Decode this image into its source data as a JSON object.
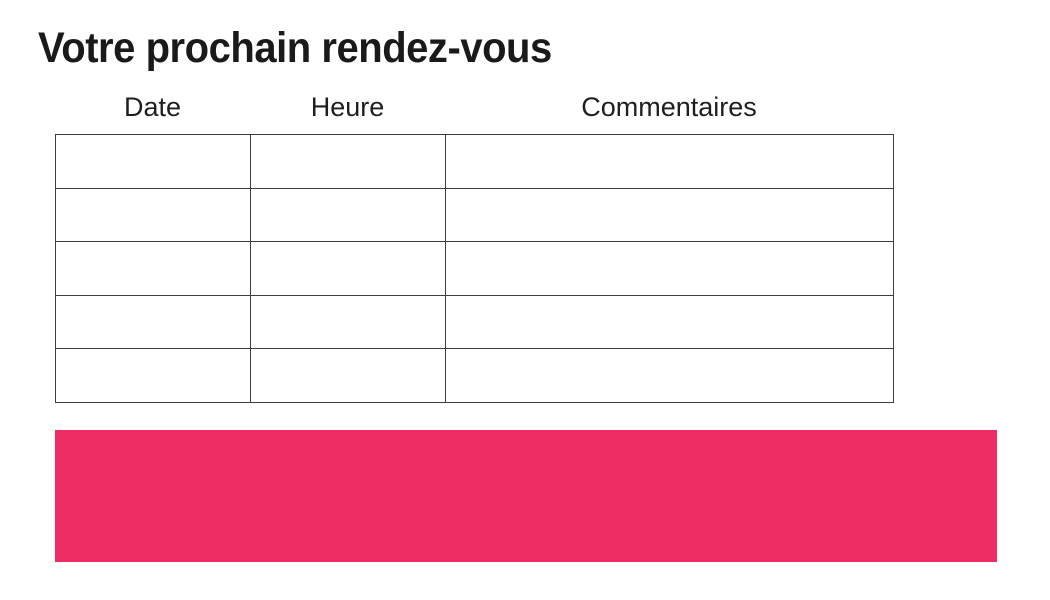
{
  "page": {
    "title": "Votre prochain rendez-vous"
  },
  "table": {
    "columns": [
      "Date",
      "Heure",
      "Commentaires"
    ],
    "rows": [
      [
        "",
        "",
        ""
      ],
      [
        "",
        "",
        ""
      ],
      [
        "",
        "",
        ""
      ],
      [
        "",
        "",
        ""
      ],
      [
        "",
        "",
        ""
      ]
    ]
  },
  "banner": {
    "color": "#ED2D64"
  },
  "colors": {
    "accent_pink": "#ED2D64",
    "text": "#1A1A1A",
    "table_border": "#3D3D3D",
    "background": "#FFFFFF"
  }
}
